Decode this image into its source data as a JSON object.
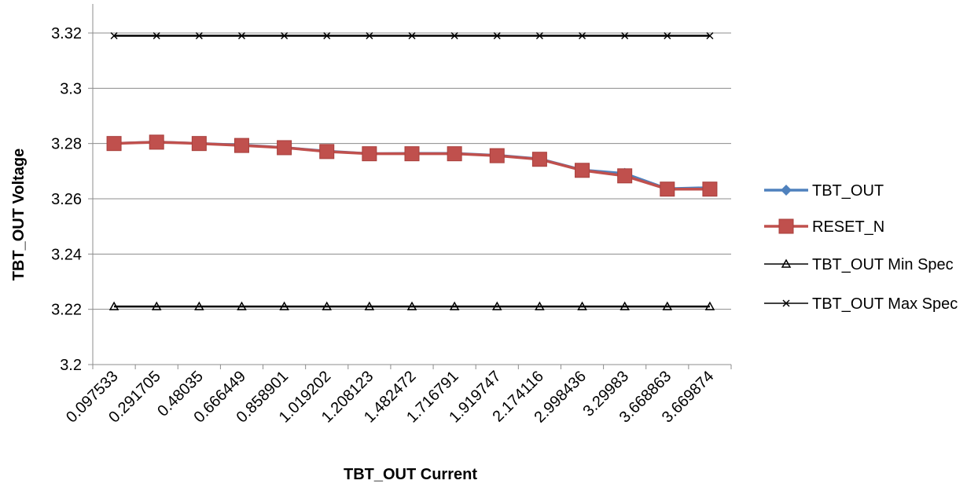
{
  "chart_data": {
    "type": "line",
    "title": "",
    "xlabel": "TBT_OUT Current",
    "ylabel": "TBT_OUT Voltage",
    "ylim": [
      3.2,
      3.32
    ],
    "yticks": [
      "3.2",
      "3.22",
      "3.24",
      "3.26",
      "3.28",
      "3.3",
      "3.32"
    ],
    "grid": true,
    "legend_position": "right",
    "categories": [
      "0.097533",
      "0.291705",
      "0.48035",
      "0.666449",
      "0.858901",
      "1.019202",
      "1.208123",
      "1.482472",
      "1.716791",
      "1.919747",
      "2.174116",
      "2.998436",
      "3.29983",
      "3.668863",
      "3.669874"
    ],
    "series": [
      {
        "name": "TBT_OUT",
        "color": "#4F81BD",
        "marker": "diamond",
        "values": [
          3.2801,
          3.2806,
          3.2801,
          3.2795,
          3.2786,
          3.2773,
          3.2764,
          3.2765,
          3.2765,
          3.2758,
          3.2745,
          3.2705,
          3.2692,
          3.2637,
          3.2641
        ]
      },
      {
        "name": "RESET_N",
        "color": "#C0504D",
        "marker": "square",
        "values": [
          3.28,
          3.2805,
          3.28,
          3.2793,
          3.2785,
          3.2771,
          3.2763,
          3.2763,
          3.2763,
          3.2756,
          3.2743,
          3.2703,
          3.2683,
          3.2635,
          3.2635
        ]
      },
      {
        "name": "TBT_OUT Min Spec",
        "color": "#000000",
        "marker": "triangle",
        "values": [
          3.221,
          3.221,
          3.221,
          3.221,
          3.221,
          3.221,
          3.221,
          3.221,
          3.221,
          3.221,
          3.221,
          3.221,
          3.221,
          3.221,
          3.221
        ]
      },
      {
        "name": "TBT_OUT Max Spec",
        "color": "#000000",
        "marker": "x",
        "values": [
          3.319,
          3.319,
          3.319,
          3.319,
          3.319,
          3.319,
          3.319,
          3.319,
          3.319,
          3.319,
          3.319,
          3.319,
          3.319,
          3.319,
          3.319
        ]
      }
    ]
  }
}
